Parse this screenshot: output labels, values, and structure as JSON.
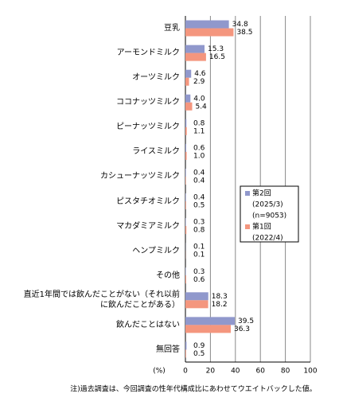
{
  "chart_data": {
    "type": "bar",
    "orientation": "horizontal",
    "categories": [
      "豆乳",
      "アーモンドミルク",
      "オーツミルク",
      "ココナッツミルク",
      "ピーナッツミルク",
      "ライスミルク",
      "カシューナッツミルク",
      "ピスタチオミルク",
      "マカダミアミルク",
      "ヘンプミルク",
      "その他",
      "直近1年間では飲んだことがない（それ以前に飲んだことがある）",
      "飲んだことはない",
      "無回答"
    ],
    "series": [
      {
        "name": "第2回",
        "sublabels": [
          "(2025/3)",
          "(n=9053)"
        ],
        "color": "#9098cc",
        "values": [
          34.8,
          15.3,
          4.6,
          4.0,
          0.8,
          0.6,
          0.4,
          0.4,
          0.3,
          0.1,
          0.3,
          18.3,
          39.5,
          0.9
        ],
        "value_labels": [
          "34.8",
          "15.3",
          "4.6",
          "4.0",
          "0.8",
          "0.6",
          "0.4",
          "0.4",
          "0.3",
          "0.1",
          "0.3",
          "18.3",
          "39.5",
          "0.9"
        ]
      },
      {
        "name": "第1回",
        "sublabels": [
          "(2022/4)"
        ],
        "color": "#f4967e",
        "values": [
          38.5,
          16.5,
          2.9,
          5.4,
          1.1,
          1.0,
          0.4,
          0.5,
          0.8,
          0.1,
          0.6,
          18.2,
          36.3,
          0.5
        ],
        "value_labels": [
          "38.5",
          "16.5",
          "2.9",
          "5.4",
          "1.1",
          "1.0",
          "0.4",
          "0.5",
          "0.8",
          "0.1",
          "0.6",
          "18.2",
          "36.3",
          "0.5"
        ]
      }
    ],
    "xlim": [
      0,
      100
    ],
    "xticks": [
      0,
      20,
      40,
      60,
      80,
      100
    ],
    "grid": true,
    "axis_unit": "(%)",
    "note": "注)過去調査は、今回調査の性年代構成比にあわせてウエイトバックした値。"
  }
}
